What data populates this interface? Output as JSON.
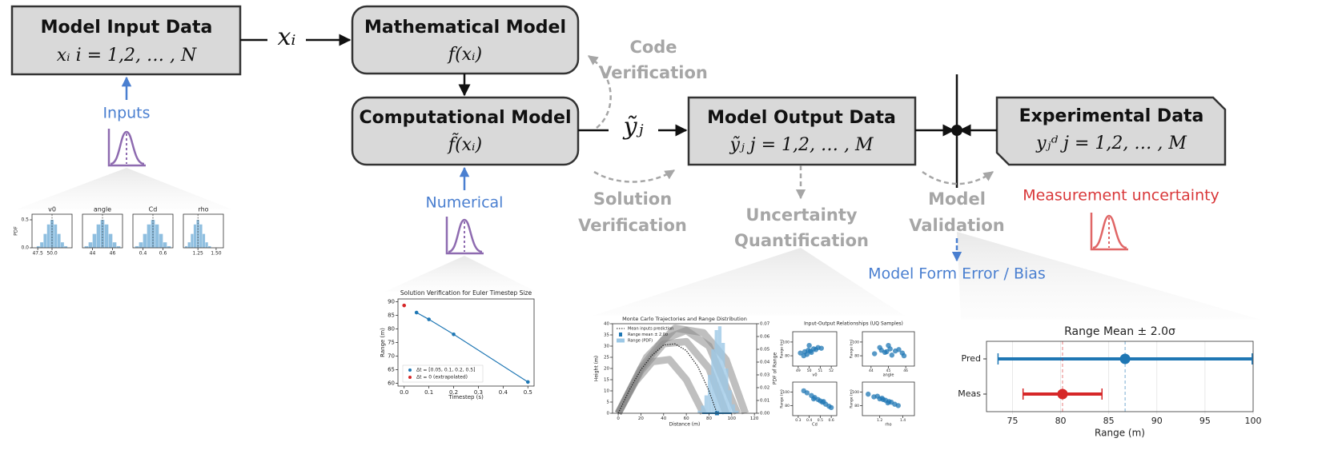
{
  "nodes": [
    {
      "title": "Model Input Data",
      "formula": "xᵢ   i = 1,2, … , N"
    },
    {
      "title": "Mathematical Model",
      "formula": "f(xᵢ)"
    },
    {
      "title": "Computational Model",
      "formula": "f̃(xᵢ)"
    },
    {
      "title": "Model Output Data",
      "formula": "ỹⱼ   j = 1,2, … , M"
    },
    {
      "title": "Experimental Data",
      "formula": "yⱼᵈ   j = 1,2, … , M"
    }
  ],
  "edge_labels": [
    "xᵢ",
    "ỹⱼ"
  ],
  "verification_labels": [
    {
      "lines": [
        "Code",
        "Verification"
      ]
    },
    {
      "lines": [
        "Solution",
        "Verification"
      ]
    },
    {
      "lines": [
        "Uncertainty",
        "Quantification"
      ]
    },
    {
      "lines": [
        "Model",
        "Validation"
      ]
    }
  ],
  "uncertainty_labels": {
    "inputs": "Inputs",
    "numerical": "Numerical",
    "measurement": "Measurement uncertainty",
    "model_form": "Model Form Error / Bias"
  },
  "charts": {
    "input_histograms": {
      "type": "histogram",
      "ylabel": "PDF",
      "ylim": [
        0,
        0.6
      ],
      "yticks": [
        {
          "value": 0,
          "label": "0.0"
        },
        0.5
      ],
      "panels": [
        {
          "title": "v0",
          "xlim": [
            46.5,
            53.5
          ],
          "xticks": [
            47.5,
            {
              "value": 50,
              "label": "50.0"
            }
          ],
          "mean": 50,
          "bins": [
            47.3,
            47.9,
            48.5,
            49.1,
            49.7,
            50.3,
            50.9,
            51.5,
            52.1,
            52.7
          ],
          "counts": [
            0.03,
            0.1,
            0.25,
            0.42,
            0.5,
            0.42,
            0.25,
            0.1,
            0.03
          ]
        },
        {
          "title": "angle",
          "xlim": [
            43,
            47
          ],
          "xticks": [
            44,
            46
          ],
          "mean": 45,
          "bins": [
            43.2,
            43.6,
            44,
            44.4,
            44.8,
            45.2,
            45.6,
            46,
            46.4,
            46.8
          ],
          "counts": [
            0.03,
            0.1,
            0.25,
            0.42,
            0.5,
            0.42,
            0.25,
            0.1,
            0.03
          ]
        },
        {
          "title": "Cd",
          "xlim": [
            0.3,
            0.7
          ],
          "xticks": [
            0.4,
            0.6
          ],
          "mean": 0.5,
          "bins": [
            0.32,
            0.36,
            0.4,
            0.44,
            0.48,
            0.52,
            0.56,
            0.6,
            0.64,
            0.68
          ],
          "counts": [
            0.03,
            0.1,
            0.25,
            0.42,
            0.5,
            0.42,
            0.25,
            0.1,
            0.03
          ]
        },
        {
          "title": "rho",
          "xlim": [
            1.05,
            1.6
          ],
          "xticks": [
            1.25,
            {
              "value": 1.5,
              "label": "1.50"
            }
          ],
          "mean": 1.25,
          "bins": [
            1.07,
            1.11,
            1.15,
            1.19,
            1.23,
            1.27,
            1.31,
            1.35,
            1.39,
            1.43
          ],
          "counts": [
            0.03,
            0.1,
            0.25,
            0.42,
            0.5,
            0.42,
            0.25,
            0.1,
            0.03
          ]
        }
      ]
    },
    "solution_verification": {
      "type": "scatter",
      "title": "Solution Verification for Euler Timestep Size",
      "xlabel": "Timestep (s)",
      "ylabel": "Range (m)",
      "xlim": [
        -0.025,
        0.525
      ],
      "xticks": [
        {
          "value": 0,
          "label": "0.0"
        },
        0.1,
        0.2,
        0.3,
        0.4,
        0.5
      ],
      "ylim": [
        59,
        91
      ],
      "yticks": [
        60,
        65,
        70,
        75,
        80,
        85,
        90
      ],
      "series": [
        {
          "name": "Δt = [0.05, 0.1, 0.2, 0.5]",
          "color": "#1f77b4",
          "x": [
            0.05,
            0.1,
            0.2,
            0.5
          ],
          "values": [
            86,
            83.5,
            78,
            60.5
          ]
        },
        {
          "name": "Δt = 0 (extrapolated)",
          "color": "#d62728",
          "x": [
            0
          ],
          "values": [
            88.6
          ]
        }
      ]
    },
    "monte_carlo": {
      "type": "line",
      "title": "Monte Carlo Trajectories and Range Distribution",
      "xlabel": "Distance (m)",
      "ylabel": "Height (m)",
      "y2label": "PDF of Range",
      "xlim": [
        -5,
        122
      ],
      "xticks": [
        0,
        20,
        40,
        60,
        80,
        100,
        120
      ],
      "ylim": [
        0,
        40
      ],
      "yticks": [
        0,
        5,
        10,
        15,
        20,
        25,
        30,
        35,
        40
      ],
      "y2lim": [
        0,
        0.07
      ],
      "y2ticks": [
        {
          "value": 0,
          "label": "0.00"
        },
        0.01,
        0.02,
        0.03,
        0.04,
        0.05,
        0.06,
        0.07
      ],
      "trajectories": [
        {
          "x": [
            0,
            15,
            30,
            45,
            60,
            75
          ],
          "values": [
            0,
            14,
            23,
            24,
            15,
            0
          ]
        },
        {
          "x": [
            0,
            20,
            40,
            60,
            80,
            95
          ],
          "values": [
            0,
            19,
            31,
            32,
            20,
            0
          ]
        },
        {
          "x": [
            0,
            20,
            40,
            60,
            80,
            105
          ],
          "values": [
            0,
            20,
            33,
            37,
            30,
            0
          ]
        },
        {
          "x": [
            0,
            25,
            50,
            75,
            95,
            112
          ],
          "values": [
            0,
            25,
            38,
            36,
            24,
            0
          ]
        }
      ],
      "series": [
        {
          "name": "Mean inputs prediction",
          "color": "#222222",
          "x": [
            0,
            10,
            20,
            30,
            40,
            50,
            60,
            70,
            80,
            87
          ],
          "values": [
            0,
            10.5,
            19.5,
            26,
            30.5,
            31,
            28,
            21,
            10,
            0
          ]
        }
      ],
      "range_mean": {
        "name": "Range mean ± 2.0σ",
        "color": "#1f77b4",
        "value": 87,
        "error": 13
      },
      "range_pdf": {
        "name": "Range (PDF)",
        "color": "#9cc8e6",
        "axis": "y2",
        "bins": [
          70,
          73,
          76,
          79,
          82,
          85,
          88,
          91,
          94,
          97,
          100,
          103,
          106
        ],
        "counts": [
          0.002,
          0.006,
          0.014,
          0.03,
          0.05,
          0.065,
          0.068,
          0.055,
          0.035,
          0.018,
          0.007,
          0.002
        ]
      }
    },
    "io_scatter": {
      "type": "scatter",
      "title": "Input-Output Relationships (UQ Samples)",
      "ylabel": "Range (m)",
      "ylim": [
        65,
        115
      ],
      "yticks": [
        80,
        100
      ],
      "color": "#1f77b4",
      "panels": [
        {
          "xlabel": "v0",
          "xlim": [
            48.5,
            52.5
          ],
          "xticks": [
            49,
            50,
            51,
            52
          ],
          "x": [
            49.2,
            49.6,
            49.9,
            50.1,
            50.4,
            50.8,
            49.5,
            50.2,
            50.6,
            49.8,
            50.0,
            51.1
          ],
          "values": [
            84,
            86,
            88,
            87,
            90,
            92,
            80,
            85,
            89,
            82,
            95,
            91
          ]
        },
        {
          "xlabel": "angle",
          "xlim": [
            43.5,
            46.5
          ],
          "xticks": [
            44,
            45,
            46
          ],
          "x": [
            44.2,
            44.6,
            44.9,
            45.1,
            45.4,
            45.8,
            44.5,
            45.2,
            45.6,
            44.8,
            45.0,
            45.9
          ],
          "values": [
            83,
            88,
            86,
            90,
            87,
            84,
            92,
            81,
            89,
            85,
            95,
            80
          ]
        },
        {
          "xlabel": "Cd",
          "xlim": [
            0.25,
            0.65
          ],
          "xticks": [
            0.3,
            0.4,
            0.5,
            0.6
          ],
          "x": [
            0.35,
            0.38,
            0.42,
            0.45,
            0.48,
            0.5,
            0.52,
            0.55,
            0.58,
            0.6,
            0.44,
            0.53
          ],
          "values": [
            102,
            99,
            95,
            92,
            89,
            87,
            85,
            82,
            79,
            77,
            90,
            86
          ]
        },
        {
          "xlabel": "rho",
          "xlim": [
            1.05,
            1.5
          ],
          "xticks": [
            1.2,
            1.4
          ],
          "x": [
            1.1,
            1.15,
            1.18,
            1.2,
            1.22,
            1.25,
            1.28,
            1.3,
            1.33,
            1.36,
            1.23,
            1.27
          ],
          "values": [
            97,
            93,
            94,
            90,
            91,
            88,
            86,
            85,
            82,
            80,
            89,
            84
          ]
        }
      ]
    },
    "range_mean": {
      "type": "errorbar",
      "title": "Range Mean ± 2.0σ",
      "xlabel": "Range (m)",
      "categories": [
        "Pred",
        "Meas"
      ],
      "values": [
        86.7,
        80.2
      ],
      "errors": [
        13.2,
        4.1
      ],
      "colors": [
        "#1f77b4",
        "#d62728"
      ],
      "xlim": [
        72.3,
        100
      ],
      "xticks": [
        75,
        80,
        85,
        90,
        95,
        100
      ],
      "grid": true
    }
  }
}
